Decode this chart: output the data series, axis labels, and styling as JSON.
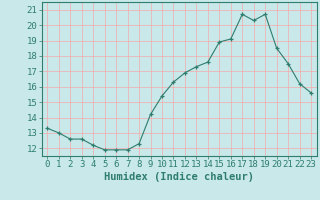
{
  "x": [
    0,
    1,
    2,
    3,
    4,
    5,
    6,
    7,
    8,
    9,
    10,
    11,
    12,
    13,
    14,
    15,
    16,
    17,
    18,
    19,
    20,
    21,
    22,
    23
  ],
  "y": [
    13.3,
    13.0,
    12.6,
    12.6,
    12.2,
    11.9,
    11.9,
    11.9,
    12.3,
    14.2,
    15.4,
    16.3,
    16.9,
    17.3,
    17.6,
    18.9,
    19.1,
    20.7,
    20.3,
    20.7,
    18.5,
    17.5,
    16.2,
    15.6
  ],
  "xlabel": "Humidex (Indice chaleur)",
  "xlim": [
    -0.5,
    23.5
  ],
  "ylim": [
    11.5,
    21.5
  ],
  "yticks": [
    12,
    13,
    14,
    15,
    16,
    17,
    18,
    19,
    20,
    21
  ],
  "xticks": [
    0,
    1,
    2,
    3,
    4,
    5,
    6,
    7,
    8,
    9,
    10,
    11,
    12,
    13,
    14,
    15,
    16,
    17,
    18,
    19,
    20,
    21,
    22,
    23
  ],
  "line_color": "#2e7d6e",
  "marker": "+",
  "bg_color": "#c8e8ea",
  "grid_color": "#f5aaaa",
  "axis_color": "#2e7d6e",
  "tick_color": "#2e7d6e",
  "label_color": "#2e7d6e",
  "xlabel_fontsize": 7.5,
  "tick_fontsize": 6.5
}
